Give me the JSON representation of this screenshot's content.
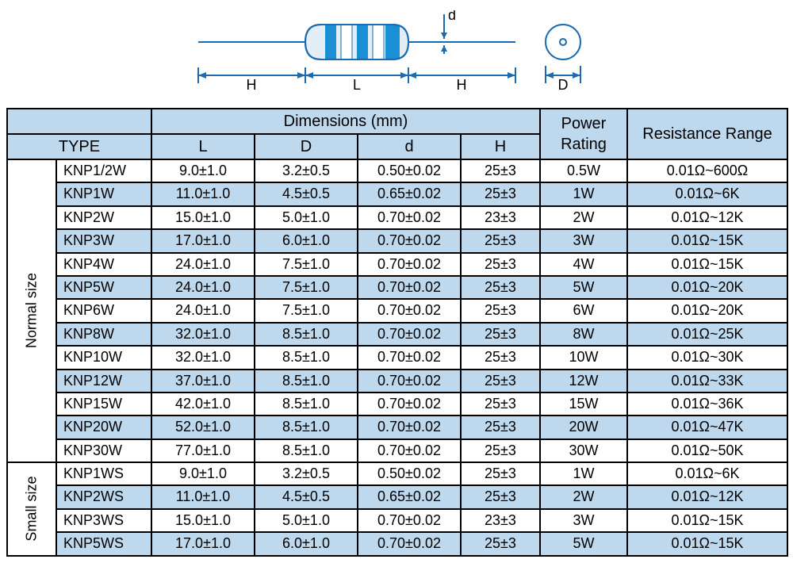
{
  "diagram": {
    "labels": {
      "H": "H",
      "L": "L",
      "D": "D",
      "d": "d"
    },
    "colors": {
      "stroke": "#1a6bb0",
      "body_fill": "#e4eef6",
      "band_blue": "#1a8fd6",
      "band_white": "#ffffff"
    }
  },
  "table": {
    "header": {
      "dimensions": "Dimensions (mm)",
      "type": "TYPE",
      "L": "L",
      "D": "D",
      "d": "d",
      "H": "H",
      "power": "Power Rating",
      "range": "Resistance Range"
    },
    "groups": [
      {
        "label": "Normal size",
        "rows": [
          {
            "type": "KNP1/2W",
            "L": "9.0±1.0",
            "D": "3.2±0.5",
            "d": "0.50±0.02",
            "H": "25±3",
            "pw": "0.5W",
            "rr": "0.01Ω~600Ω",
            "stripe": false
          },
          {
            "type": "KNP1W",
            "L": "11.0±1.0",
            "D": "4.5±0.5",
            "d": "0.65±0.02",
            "H": "25±3",
            "pw": "1W",
            "rr": "0.01Ω~6K",
            "stripe": true
          },
          {
            "type": "KNP2W",
            "L": "15.0±1.0",
            "D": "5.0±1.0",
            "d": "0.70±0.02",
            "H": "23±3",
            "pw": "2W",
            "rr": "0.01Ω~12K",
            "stripe": false
          },
          {
            "type": "KNP3W",
            "L": "17.0±1.0",
            "D": "6.0±1.0",
            "d": "0.70±0.02",
            "H": "25±3",
            "pw": "3W",
            "rr": "0.01Ω~15K",
            "stripe": true
          },
          {
            "type": "KNP4W",
            "L": "24.0±1.0",
            "D": "7.5±1.0",
            "d": "0.70±0.02",
            "H": "25±3",
            "pw": "4W",
            "rr": "0.01Ω~15K",
            "stripe": false
          },
          {
            "type": "KNP5W",
            "L": "24.0±1.0",
            "D": "7.5±1.0",
            "d": "0.70±0.02",
            "H": "25±3",
            "pw": "5W",
            "rr": "0.01Ω~20K",
            "stripe": true
          },
          {
            "type": "KNP6W",
            "L": "24.0±1.0",
            "D": "7.5±1.0",
            "d": "0.70±0.02",
            "H": "25±3",
            "pw": "6W",
            "rr": "0.01Ω~20K",
            "stripe": false
          },
          {
            "type": "KNP8W",
            "L": "32.0±1.0",
            "D": "8.5±1.0",
            "d": "0.70±0.02",
            "H": "25±3",
            "pw": "8W",
            "rr": "0.01Ω~25K",
            "stripe": true
          },
          {
            "type": "KNP10W",
            "L": "32.0±1.0",
            "D": "8.5±1.0",
            "d": "0.70±0.02",
            "H": "25±3",
            "pw": "10W",
            "rr": "0.01Ω~30K",
            "stripe": false
          },
          {
            "type": "KNP12W",
            "L": "37.0±1.0",
            "D": "8.5±1.0",
            "d": "0.70±0.02",
            "H": "25±3",
            "pw": "12W",
            "rr": "0.01Ω~33K",
            "stripe": true
          },
          {
            "type": "KNP15W",
            "L": "42.0±1.0",
            "D": "8.5±1.0",
            "d": "0.70±0.02",
            "H": "25±3",
            "pw": "15W",
            "rr": "0.01Ω~36K",
            "stripe": false
          },
          {
            "type": "KNP20W",
            "L": "52.0±1.0",
            "D": "8.5±1.0",
            "d": "0.70±0.02",
            "H": "25±3",
            "pw": "20W",
            "rr": "0.01Ω~47K",
            "stripe": true
          },
          {
            "type": "KNP30W",
            "L": "77.0±1.0",
            "D": "8.5±1.0",
            "d": "0.70±0.02",
            "H": "25±3",
            "pw": "30W",
            "rr": "0.01Ω~50K",
            "stripe": false
          }
        ]
      },
      {
        "label": "Small size",
        "rows": [
          {
            "type": "KNP1WS",
            "L": "9.0±1.0",
            "D": "3.2±0.5",
            "d": "0.50±0.02",
            "H": "25±3",
            "pw": "1W",
            "rr": "0.01Ω~6K",
            "stripe": false
          },
          {
            "type": "KNP2WS",
            "L": "11.0±1.0",
            "D": "4.5±0.5",
            "d": "0.65±0.02",
            "H": "25±3",
            "pw": "2W",
            "rr": "0.01Ω~12K",
            "stripe": true
          },
          {
            "type": "KNP3WS",
            "L": "15.0±1.0",
            "D": "5.0±1.0",
            "d": "0.70±0.02",
            "H": "23±3",
            "pw": "3W",
            "rr": "0.01Ω~15K",
            "stripe": false
          },
          {
            "type": "KNP5WS",
            "L": "17.0±1.0",
            "D": "6.0±1.0",
            "d": "0.70±0.02",
            "H": "25±3",
            "pw": "5W",
            "rr": "0.01Ω~15K",
            "stripe": true
          }
        ]
      }
    ]
  }
}
